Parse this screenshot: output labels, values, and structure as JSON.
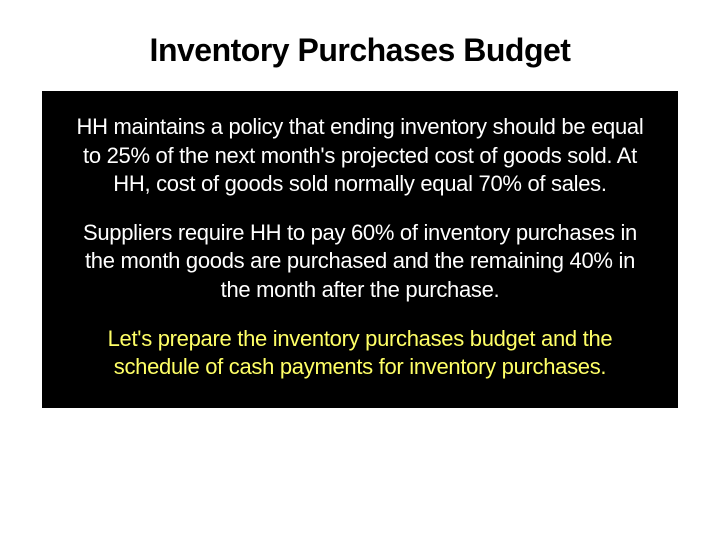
{
  "slide": {
    "title": "Inventory Purchases Budget",
    "title_color": "#000000",
    "title_fontsize": 32,
    "background_color": "#ffffff",
    "content_box": {
      "background_color": "#000000",
      "paragraphs": [
        {
          "text": "HH maintains a policy that ending inventory should be equal to 25% of the next month's projected cost of goods sold. At HH, cost of goods sold normally equal 70% of sales.",
          "color": "#ffffff"
        },
        {
          "text": "Suppliers require HH to pay 60% of inventory purchases in the month goods are purchased and the remaining 40% in the month after the purchase.",
          "color": "#ffffff"
        },
        {
          "text": "Let's prepare the inventory purchases budget and the schedule of cash payments for inventory purchases.",
          "color": "#ffff66"
        }
      ],
      "body_fontsize": 22
    }
  }
}
